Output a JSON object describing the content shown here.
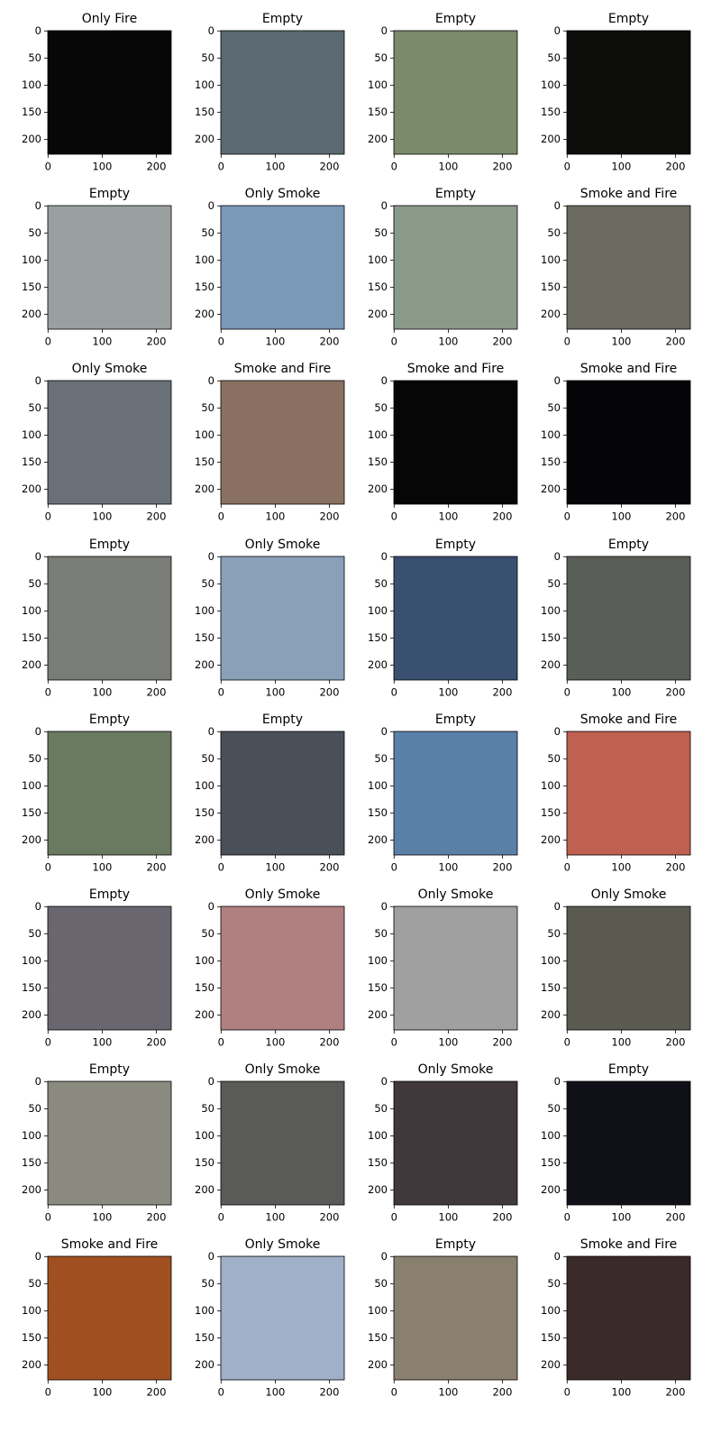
{
  "chart_data": [
    {
      "type": "image",
      "title": "Only Fire",
      "color": "#070707",
      "xlim": [
        -0.5,
        227.5
      ],
      "ylim": [
        227.5,
        -0.5
      ],
      "xticks": [
        0,
        100,
        200
      ],
      "yticks": [
        0,
        50,
        100,
        150,
        200
      ]
    },
    {
      "type": "image",
      "title": "Empty",
      "color": "#5a6a70",
      "xlim": [
        -0.5,
        227.5
      ],
      "ylim": [
        227.5,
        -0.5
      ],
      "xticks": [
        0,
        100,
        200
      ],
      "yticks": [
        0,
        50,
        100,
        150,
        200
      ]
    },
    {
      "type": "image",
      "title": "Empty",
      "color": "#7a8a6a",
      "xlim": [
        -0.5,
        227.5
      ],
      "ylim": [
        227.5,
        -0.5
      ],
      "xticks": [
        0,
        100,
        200
      ],
      "yticks": [
        0,
        50,
        100,
        150,
        200
      ]
    },
    {
      "type": "image",
      "title": "Empty",
      "color": "#0c0c0a",
      "xlim": [
        -0.5,
        227.5
      ],
      "ylim": [
        227.5,
        -0.5
      ],
      "xticks": [
        0,
        100,
        200
      ],
      "yticks": [
        0,
        50,
        100,
        150,
        200
      ]
    },
    {
      "type": "image",
      "title": "Empty",
      "color": "#9aa0a0",
      "xlim": [
        -0.5,
        227.5
      ],
      "ylim": [
        227.5,
        -0.5
      ],
      "xticks": [
        0,
        100,
        200
      ],
      "yticks": [
        0,
        50,
        100,
        150,
        200
      ]
    },
    {
      "type": "image",
      "title": "Only Smoke",
      "color": "#7a98b8",
      "xlim": [
        -0.5,
        227.5
      ],
      "ylim": [
        227.5,
        -0.5
      ],
      "xticks": [
        0,
        100,
        200
      ],
      "yticks": [
        0,
        50,
        100,
        150,
        200
      ]
    },
    {
      "type": "image",
      "title": "Empty",
      "color": "#8a9a88",
      "xlim": [
        -0.5,
        227.5
      ],
      "ylim": [
        227.5,
        -0.5
      ],
      "xticks": [
        0,
        100,
        200
      ],
      "yticks": [
        0,
        50,
        100,
        150,
        200
      ]
    },
    {
      "type": "image",
      "title": "Smoke and Fire",
      "color": "#6a6a60",
      "xlim": [
        -0.5,
        227.5
      ],
      "ylim": [
        227.5,
        -0.5
      ],
      "xticks": [
        0,
        100,
        200
      ],
      "yticks": [
        0,
        50,
        100,
        150,
        200
      ]
    },
    {
      "type": "image",
      "title": "Only Smoke",
      "color": "#6a7078",
      "xlim": [
        -0.5,
        227.5
      ],
      "ylim": [
        227.5,
        -0.5
      ],
      "xticks": [
        0,
        100,
        200
      ],
      "yticks": [
        0,
        50,
        100,
        150,
        200
      ]
    },
    {
      "type": "image",
      "title": "Smoke and Fire",
      "color": "#8a7060",
      "xlim": [
        -0.5,
        227.5
      ],
      "ylim": [
        227.5,
        -0.5
      ],
      "xticks": [
        0,
        100,
        200
      ],
      "yticks": [
        0,
        50,
        100,
        150,
        200
      ]
    },
    {
      "type": "image",
      "title": "Smoke and Fire",
      "color": "#060606",
      "xlim": [
        -0.5,
        227.5
      ],
      "ylim": [
        227.5,
        -0.5
      ],
      "xticks": [
        0,
        100,
        200
      ],
      "yticks": [
        0,
        50,
        100,
        150,
        200
      ]
    },
    {
      "type": "image",
      "title": "Smoke and Fire",
      "color": "#050508",
      "xlim": [
        -0.5,
        227.5
      ],
      "ylim": [
        227.5,
        -0.5
      ],
      "xticks": [
        0,
        100,
        200
      ],
      "yticks": [
        0,
        50,
        100,
        150,
        200
      ]
    },
    {
      "type": "image",
      "title": "Empty",
      "color": "#7a7c78",
      "xlim": [
        -0.5,
        227.5
      ],
      "ylim": [
        227.5,
        -0.5
      ],
      "xticks": [
        0,
        100,
        200
      ],
      "yticks": [
        0,
        50,
        100,
        150,
        200
      ]
    },
    {
      "type": "image",
      "title": "Only Smoke",
      "color": "#8aa0b8",
      "xlim": [
        -0.5,
        227.5
      ],
      "ylim": [
        227.5,
        -0.5
      ],
      "xticks": [
        0,
        100,
        200
      ],
      "yticks": [
        0,
        50,
        100,
        150,
        200
      ]
    },
    {
      "type": "image",
      "title": "Empty",
      "color": "#3a5070",
      "xlim": [
        -0.5,
        227.5
      ],
      "ylim": [
        227.5,
        -0.5
      ],
      "xticks": [
        0,
        100,
        200
      ],
      "yticks": [
        0,
        50,
        100,
        150,
        200
      ]
    },
    {
      "type": "image",
      "title": "Empty",
      "color": "#5a5e58",
      "xlim": [
        -0.5,
        227.5
      ],
      "ylim": [
        227.5,
        -0.5
      ],
      "xticks": [
        0,
        100,
        200
      ],
      "yticks": [
        0,
        50,
        100,
        150,
        200
      ]
    },
    {
      "type": "image",
      "title": "Empty",
      "color": "#6a7a60",
      "xlim": [
        -0.5,
        227.5
      ],
      "ylim": [
        227.5,
        -0.5
      ],
      "xticks": [
        0,
        100,
        200
      ],
      "yticks": [
        0,
        50,
        100,
        150,
        200
      ]
    },
    {
      "type": "image",
      "title": "Empty",
      "color": "#4a5058",
      "xlim": [
        -0.5,
        227.5
      ],
      "ylim": [
        227.5,
        -0.5
      ],
      "xticks": [
        0,
        100,
        200
      ],
      "yticks": [
        0,
        50,
        100,
        150,
        200
      ]
    },
    {
      "type": "image",
      "title": "Empty",
      "color": "#5a80a8",
      "xlim": [
        -0.5,
        227.5
      ],
      "ylim": [
        227.5,
        -0.5
      ],
      "xticks": [
        0,
        100,
        200
      ],
      "yticks": [
        0,
        50,
        100,
        150,
        200
      ]
    },
    {
      "type": "image",
      "title": "Smoke and Fire",
      "color": "#c06050",
      "xlim": [
        -0.5,
        227.5
      ],
      "ylim": [
        227.5,
        -0.5
      ],
      "xticks": [
        0,
        100,
        200
      ],
      "yticks": [
        0,
        50,
        100,
        150,
        200
      ]
    },
    {
      "type": "image",
      "title": "Empty",
      "color": "#6a6670",
      "xlim": [
        -0.5,
        227.5
      ],
      "ylim": [
        227.5,
        -0.5
      ],
      "xticks": [
        0,
        100,
        200
      ],
      "yticks": [
        0,
        50,
        100,
        150,
        200
      ]
    },
    {
      "type": "image",
      "title": "Only Smoke",
      "color": "#b08080",
      "xlim": [
        -0.5,
        227.5
      ],
      "ylim": [
        227.5,
        -0.5
      ],
      "xticks": [
        0,
        100,
        200
      ],
      "yticks": [
        0,
        50,
        100,
        150,
        200
      ]
    },
    {
      "type": "image",
      "title": "Only Smoke",
      "color": "#a0a0a0",
      "xlim": [
        -0.5,
        227.5
      ],
      "ylim": [
        227.5,
        -0.5
      ],
      "xticks": [
        0,
        100,
        200
      ],
      "yticks": [
        0,
        50,
        100,
        150,
        200
      ]
    },
    {
      "type": "image",
      "title": "Only Smoke",
      "color": "#5a5a50",
      "xlim": [
        -0.5,
        227.5
      ],
      "ylim": [
        227.5,
        -0.5
      ],
      "xticks": [
        0,
        100,
        200
      ],
      "yticks": [
        0,
        50,
        100,
        150,
        200
      ]
    },
    {
      "type": "image",
      "title": "Empty",
      "color": "#8a8a80",
      "xlim": [
        -0.5,
        227.5
      ],
      "ylim": [
        227.5,
        -0.5
      ],
      "xticks": [
        0,
        100,
        200
      ],
      "yticks": [
        0,
        50,
        100,
        150,
        200
      ]
    },
    {
      "type": "image",
      "title": "Only Smoke",
      "color": "#5a5a58",
      "xlim": [
        -0.5,
        227.5
      ],
      "ylim": [
        227.5,
        -0.5
      ],
      "xticks": [
        0,
        100,
        200
      ],
      "yticks": [
        0,
        50,
        100,
        150,
        200
      ]
    },
    {
      "type": "image",
      "title": "Only Smoke",
      "color": "#40383a",
      "xlim": [
        -0.5,
        227.5
      ],
      "ylim": [
        227.5,
        -0.5
      ],
      "xticks": [
        0,
        100,
        200
      ],
      "yticks": [
        0,
        50,
        100,
        150,
        200
      ]
    },
    {
      "type": "image",
      "title": "Empty",
      "color": "#101018",
      "xlim": [
        -0.5,
        227.5
      ],
      "ylim": [
        227.5,
        -0.5
      ],
      "xticks": [
        0,
        100,
        200
      ],
      "yticks": [
        0,
        50,
        100,
        150,
        200
      ]
    },
    {
      "type": "image",
      "title": "Smoke and Fire",
      "color": "#a05020",
      "xlim": [
        -0.5,
        227.5
      ],
      "ylim": [
        227.5,
        -0.5
      ],
      "xticks": [
        0,
        100,
        200
      ],
      "yticks": [
        0,
        50,
        100,
        150,
        200
      ]
    },
    {
      "type": "image",
      "title": "Only Smoke",
      "color": "#a0b0c8",
      "xlim": [
        -0.5,
        227.5
      ],
      "ylim": [
        227.5,
        -0.5
      ],
      "xticks": [
        0,
        100,
        200
      ],
      "yticks": [
        0,
        50,
        100,
        150,
        200
      ]
    },
    {
      "type": "image",
      "title": "Empty",
      "color": "#8a8070",
      "xlim": [
        -0.5,
        227.5
      ],
      "ylim": [
        227.5,
        -0.5
      ],
      "xticks": [
        0,
        100,
        200
      ],
      "yticks": [
        0,
        50,
        100,
        150,
        200
      ]
    },
    {
      "type": "image",
      "title": "Smoke and Fire",
      "color": "#3a2a28",
      "xlim": [
        -0.5,
        227.5
      ],
      "ylim": [
        227.5,
        -0.5
      ],
      "xticks": [
        0,
        100,
        200
      ],
      "yticks": [
        0,
        50,
        100,
        150,
        200
      ]
    }
  ]
}
